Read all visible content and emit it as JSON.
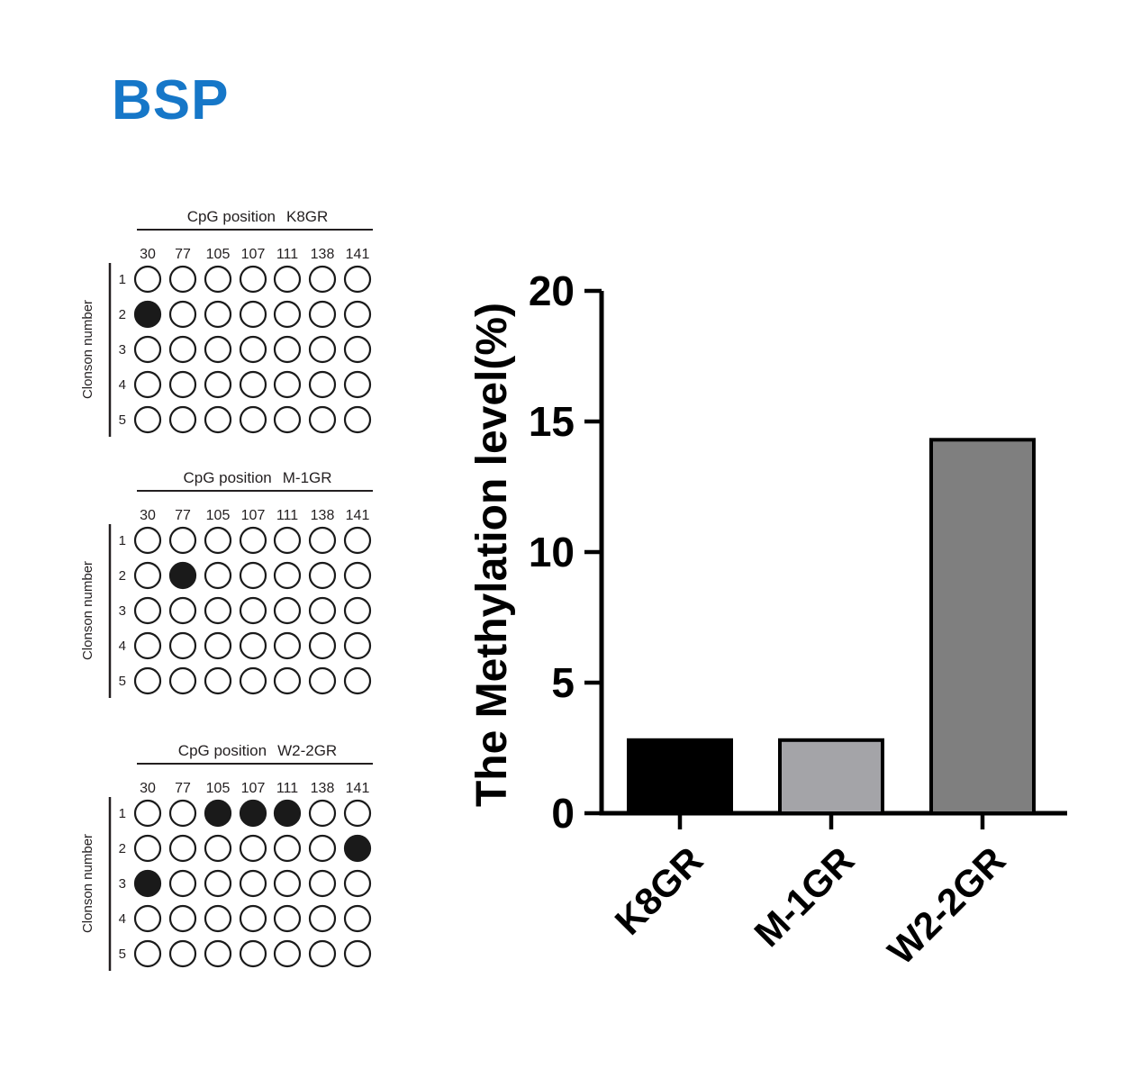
{
  "page_title": "BSP",
  "colors": {
    "title_blue": "#1677C8",
    "panel_ink": "#231f20",
    "circle_ink": "#1a1a1a",
    "axis_black": "#000000"
  },
  "panels": [
    {
      "title_prefix": "CpG position",
      "sample": "K8GR",
      "columns": [
        "30",
        "77",
        "105",
        "107",
        "111",
        "138",
        "141"
      ],
      "rows": [
        "1",
        "2",
        "3",
        "4",
        "5"
      ],
      "row_axis_label": "Clonson number",
      "filled_row_col": [
        [
          2,
          1
        ]
      ]
    },
    {
      "title_prefix": "CpG position",
      "sample": "M-1GR",
      "columns": [
        "30",
        "77",
        "105",
        "107",
        "111",
        "138",
        "141"
      ],
      "rows": [
        "1",
        "2",
        "3",
        "4",
        "5"
      ],
      "row_axis_label": "Clonson number",
      "filled_row_col": [
        [
          2,
          2
        ]
      ]
    },
    {
      "title_prefix": "CpG position",
      "sample": "W2-2GR",
      "columns": [
        "30",
        "77",
        "105",
        "107",
        "111",
        "138",
        "141"
      ],
      "rows": [
        "1",
        "2",
        "3",
        "4",
        "5"
      ],
      "row_axis_label": "Clonson number",
      "filled_row_col": [
        [
          1,
          3
        ],
        [
          1,
          4
        ],
        [
          1,
          5
        ],
        [
          2,
          7
        ],
        [
          3,
          1
        ]
      ]
    }
  ],
  "chart_data": {
    "type": "bar",
    "title": "",
    "xlabel": "",
    "ylabel": "The Methylation level(%)",
    "categories": [
      "K8GR",
      "M-1GR",
      "W2-2GR"
    ],
    "values": [
      2.8,
      2.8,
      14.3
    ],
    "ylim": [
      0,
      20
    ],
    "yticks": [
      0,
      5,
      10,
      15,
      20
    ],
    "bar_colors": [
      "#000000",
      "#a4a4a8",
      "#7f7f7f"
    ],
    "bar_border_color": "#000000",
    "grid": false,
    "legend": "none"
  }
}
